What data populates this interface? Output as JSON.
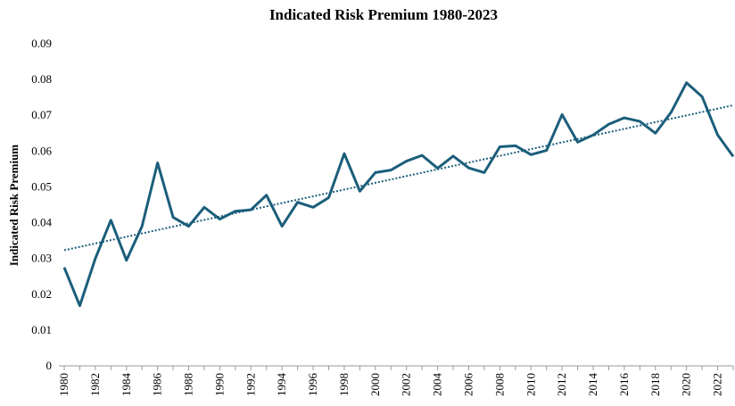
{
  "chart_data": {
    "type": "line",
    "title": "Indicated Risk Premium 1980-2023",
    "y_label": "Indicated Risk Premium",
    "categories": [
      "1980",
      null,
      "1982",
      null,
      "1984",
      null,
      "1986",
      null,
      "1988",
      null,
      "1990",
      null,
      "1992",
      null,
      "1994",
      null,
      "1996",
      null,
      "1998",
      null,
      "2000",
      null,
      "2002",
      null,
      "2004",
      null,
      "2006",
      null,
      "2008",
      null,
      "2010",
      null,
      "2012",
      null,
      "2014",
      null,
      "2016",
      null,
      "2018",
      null,
      "2020",
      null,
      "2022",
      null
    ],
    "series": [
      {
        "color": "#1b5e7b",
        "values": [
          0.0275,
          0.0168,
          0.03,
          0.0407,
          0.0295,
          0.039,
          0.0567,
          0.0415,
          0.039,
          0.0443,
          0.041,
          0.0432,
          0.0436,
          0.0477,
          0.039,
          0.0457,
          0.0443,
          0.047,
          0.0593,
          0.0488,
          0.054,
          0.0547,
          0.0572,
          0.0588,
          0.0552,
          0.0586,
          0.0553,
          0.054,
          0.0612,
          0.0615,
          0.059,
          0.0602,
          0.0702,
          0.0625,
          0.0645,
          0.0675,
          0.0693,
          0.0683,
          0.065,
          0.0708,
          0.0791,
          0.0752,
          0.0645,
          0.0585
        ]
      }
    ],
    "trendline": {
      "color": "#1b5e7b",
      "values": [
        0.0323,
        0.0728
      ]
    },
    "ylim": [
      0,
      0.09
    ],
    "yticks": [
      0,
      0.01,
      0.02,
      0.03,
      0.04,
      0.05,
      0.06,
      0.07,
      0.08,
      0.09
    ],
    "grid": false
  }
}
